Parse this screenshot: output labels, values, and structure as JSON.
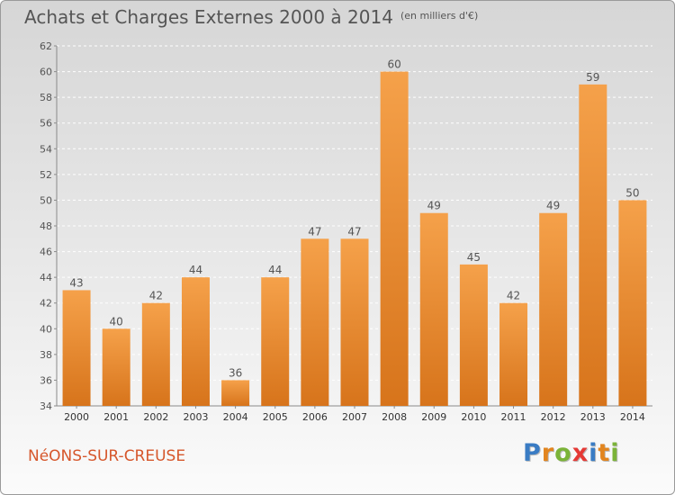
{
  "title": "Achats et Charges Externes 2000 à 2014",
  "title_unit": "(en milliers d'€)",
  "commune": "NéONS-SUR-CREUSE",
  "logo": {
    "letters": [
      "P",
      "r",
      "o",
      "x",
      "i",
      "t",
      "i"
    ],
    "colors": [
      "#3a7cc4",
      "#e2851f",
      "#7bb338",
      "#e53935",
      "#3a7cc4",
      "#e2851f",
      "#7bb338"
    ]
  },
  "colors": {
    "bar_top": "#f5a14a",
    "bar_bottom": "#d7741b",
    "text": "#555555",
    "commune": "#d6572c"
  },
  "chart_data": {
    "type": "bar",
    "title": "Achats et Charges Externes 2000 à 2014",
    "ylabel": "",
    "xlabel": "",
    "categories": [
      "2000",
      "2001",
      "2002",
      "2003",
      "2004",
      "2005",
      "2006",
      "2007",
      "2008",
      "2009",
      "2010",
      "2011",
      "2012",
      "2013",
      "2014"
    ],
    "values": [
      43,
      40,
      42,
      44,
      36,
      44,
      47,
      47,
      60,
      49,
      45,
      42,
      49,
      59,
      50
    ],
    "ylim": [
      34,
      62
    ],
    "yticks": [
      34,
      36,
      38,
      40,
      42,
      44,
      46,
      48,
      50,
      52,
      54,
      56,
      58,
      60,
      62
    ],
    "grid": true
  }
}
